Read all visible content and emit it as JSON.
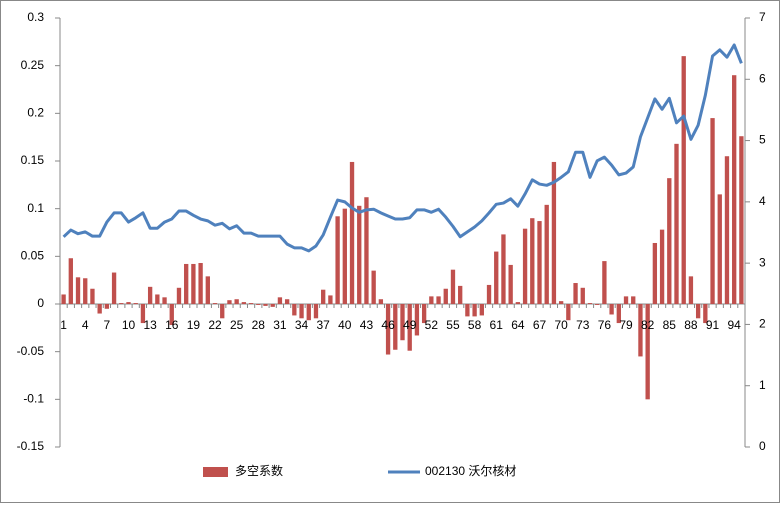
{
  "chart_data": {
    "type": "bar_line",
    "categories": [
      "1",
      null,
      null,
      "4",
      null,
      null,
      "7",
      null,
      null,
      "10",
      null,
      null,
      "13",
      null,
      null,
      "16",
      null,
      null,
      "19",
      null,
      null,
      "22",
      null,
      null,
      "25",
      null,
      null,
      "28",
      null,
      null,
      "31",
      null,
      null,
      "34",
      null,
      null,
      "37",
      null,
      null,
      "40",
      null,
      null,
      "43",
      null,
      null,
      "46",
      null,
      null,
      "49",
      null,
      null,
      "52",
      null,
      null,
      "55",
      null,
      null,
      "58",
      null,
      null,
      "61",
      null,
      null,
      "64",
      null,
      null,
      "67",
      null,
      null,
      "70",
      null,
      null,
      "73",
      null,
      null,
      "76",
      null,
      null,
      "79",
      null,
      null,
      "82",
      null,
      null,
      "85",
      null,
      null,
      "88",
      null,
      null,
      "91",
      null,
      null,
      "94",
      null
    ],
    "series": [
      {
        "name": "多空系数",
        "type": "bar",
        "color": "#c0504d",
        "values": [
          0.01,
          0.048,
          0.028,
          0.027,
          0.016,
          -0.01,
          -0.005,
          0.033,
          0.001,
          0.002,
          0.001,
          -0.02,
          0.018,
          0.01,
          0.007,
          -0.022,
          0.017,
          0.042,
          0.042,
          0.043,
          0.029,
          0.001,
          -0.015,
          0.004,
          0.005,
          0.002,
          0.001,
          -0.001,
          -0.002,
          -0.003,
          0.007,
          0.005,
          -0.012,
          -0.015,
          -0.017,
          -0.015,
          0.015,
          0.009,
          0.092,
          0.1,
          0.149,
          0.103,
          0.112,
          0.035,
          0.005,
          -0.053,
          -0.048,
          -0.038,
          -0.049,
          -0.033,
          -0.02,
          0.008,
          0.008,
          0.016,
          0.036,
          0.019,
          -0.013,
          -0.013,
          -0.012,
          0.02,
          0.055,
          0.073,
          0.041,
          0.002,
          0.079,
          0.09,
          0.087,
          0.104,
          0.149,
          0.003,
          -0.017,
          0.022,
          0.017,
          0.001,
          -0.001,
          0.045,
          -0.011,
          -0.02,
          0.008,
          0.008,
          -0.055,
          -0.1,
          0.064,
          0.078,
          0.132,
          0.168,
          0.26,
          0.029,
          -0.015,
          -0.02,
          0.195,
          0.115,
          0.155,
          0.24,
          0.176
        ]
      },
      {
        "name": "002130 沃尔核材",
        "type": "line",
        "axis": "y2",
        "color": "#4f81bd",
        "values": [
          3.43,
          3.54,
          3.48,
          3.51,
          3.44,
          3.44,
          3.67,
          3.82,
          3.82,
          3.67,
          3.74,
          3.82,
          3.57,
          3.57,
          3.67,
          3.72,
          3.85,
          3.85,
          3.78,
          3.72,
          3.69,
          3.62,
          3.65,
          3.56,
          3.61,
          3.49,
          3.49,
          3.44,
          3.44,
          3.44,
          3.44,
          3.31,
          3.25,
          3.25,
          3.2,
          3.28,
          3.46,
          3.75,
          4.03,
          4.0,
          3.9,
          3.83,
          3.87,
          3.88,
          3.82,
          3.77,
          3.72,
          3.72,
          3.74,
          3.87,
          3.87,
          3.83,
          3.88,
          3.75,
          3.6,
          3.43,
          3.51,
          3.59,
          3.69,
          3.82,
          3.96,
          3.98,
          4.05,
          3.93,
          4.13,
          4.36,
          4.29,
          4.27,
          4.32,
          4.4,
          4.49,
          4.81,
          4.81,
          4.4,
          4.67,
          4.73,
          4.6,
          4.44,
          4.47,
          4.57,
          5.06,
          5.37,
          5.68,
          5.51,
          5.69,
          5.29,
          5.4,
          5.02,
          5.25,
          5.74,
          6.38,
          6.48,
          6.36,
          6.56,
          6.26
        ]
      }
    ],
    "ylim": [
      -0.15,
      0.3
    ],
    "yticks": [
      -0.15,
      -0.1,
      -0.05,
      0,
      0.05,
      0.1,
      0.15,
      0.2,
      0.25,
      0.3
    ],
    "y2lim": [
      0,
      7
    ],
    "y2ticks": [
      0,
      1,
      2,
      3,
      4,
      5,
      6,
      7
    ],
    "grid": false,
    "legend": "bottom"
  }
}
